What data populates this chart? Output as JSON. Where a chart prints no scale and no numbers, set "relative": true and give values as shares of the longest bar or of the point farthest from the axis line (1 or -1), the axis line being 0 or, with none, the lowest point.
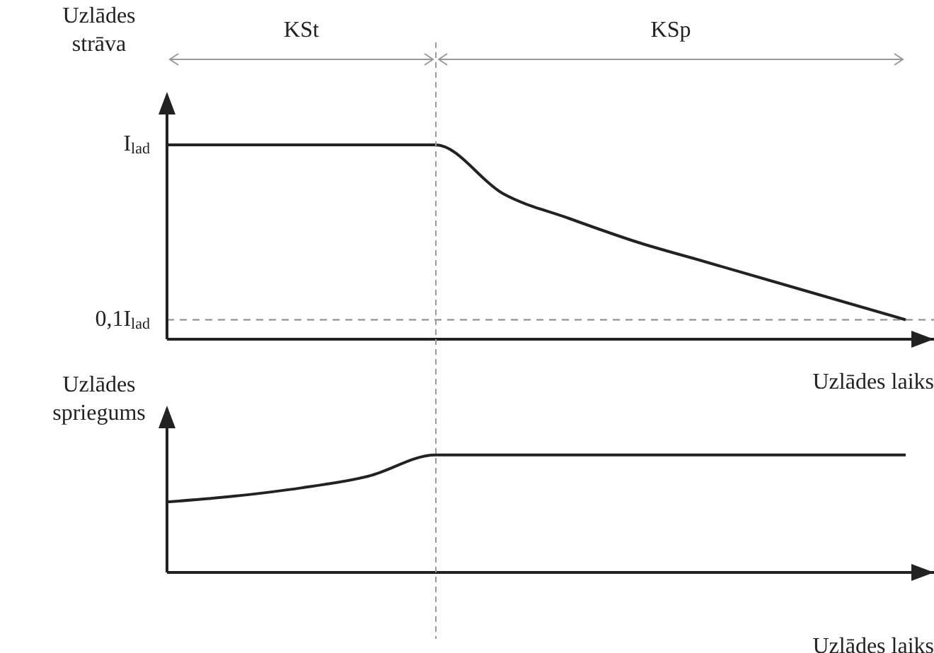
{
  "chart_data": [
    {
      "type": "line",
      "ylabel": "Uzlādes strāva",
      "xlabel": "Uzlādes laiks",
      "annotations": [
        "KSt",
        "KSp",
        "I$_{lad}$",
        "0,1I$_{lad}$"
      ],
      "categories": [
        null,
        null,
        null,
        null,
        null,
        null,
        null,
        null,
        null,
        null,
        null,
        null
      ],
      "series": [
        {
          "color": "#222222",
          "values": [
            1,
            1,
            1,
            1,
            1,
            0.75,
            0.62,
            0.5,
            0.4,
            0.3,
            0.2,
            0.1
          ]
        }
      ],
      "relative": true,
      "ref_lines": [
        {
          "axis": "y",
          "value": 0.1,
          "label": null,
          "color": "#888888",
          "line_style": "dashed"
        }
      ],
      "tick_labels": "y",
      "grid": false,
      "marker": "none",
      "line_style": "solid"
    },
    {
      "type": "line",
      "ylabel": "Uzlādes spriegums",
      "xlabel": "Uzlādes laiks",
      "categories": [
        null,
        null,
        null,
        null,
        null,
        null,
        null,
        null,
        null,
        null,
        null,
        null
      ],
      "series": [
        {
          "color": "#222222",
          "values": [
            0.6,
            0.65,
            0.72,
            0.82,
            1,
            1,
            1,
            1,
            1,
            1,
            1,
            1
          ]
        }
      ],
      "relative": true,
      "grid": false,
      "marker": "none",
      "line_style": "solid"
    }
  ]
}
